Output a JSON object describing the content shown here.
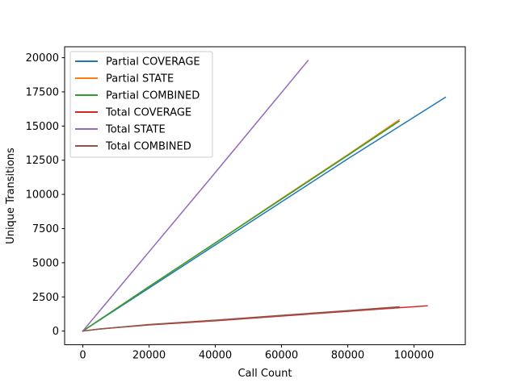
{
  "chart_data": {
    "type": "line",
    "title": "",
    "xlabel": "Call Count",
    "ylabel": "Unique Transitions",
    "xlim": [
      -5500,
      115500
    ],
    "ylim": [
      -1000,
      20800
    ],
    "xticks": [
      0,
      20000,
      40000,
      60000,
      80000,
      100000
    ],
    "xtick_labels": [
      "0",
      "20000",
      "40000",
      "60000",
      "80000",
      "100000"
    ],
    "yticks": [
      0,
      2500,
      5000,
      7500,
      10000,
      12500,
      15000,
      17500,
      20000
    ],
    "ytick_labels": [
      "0",
      "2500",
      "5000",
      "7500",
      "10000",
      "12500",
      "15000",
      "17500",
      "20000"
    ],
    "grid": false,
    "legend_position": "top-left",
    "series": [
      {
        "name": "Partial COVERAGE",
        "color": "#1f77b4",
        "x": [
          0,
          20000,
          40000,
          60000,
          80000,
          109500
        ],
        "y": [
          0,
          3150,
          6300,
          9450,
          12600,
          17100
        ]
      },
      {
        "name": "Partial STATE",
        "color": "#ff7f0e",
        "x": [
          0,
          20000,
          40000,
          60000,
          80000,
          95500
        ],
        "y": [
          0,
          3250,
          6450,
          9700,
          12900,
          15450
        ]
      },
      {
        "name": "Partial COMBINED",
        "color": "#2ca02c",
        "x": [
          0,
          20000,
          40000,
          60000,
          80000,
          95500
        ],
        "y": [
          0,
          3250,
          6450,
          9650,
          12850,
          15350
        ]
      },
      {
        "name": "Total COVERAGE",
        "color": "#d62728",
        "x": [
          0,
          5000,
          20000,
          40000,
          60000,
          80000,
          104000
        ],
        "y": [
          0,
          150,
          450,
          750,
          1100,
          1450,
          1850
        ]
      },
      {
        "name": "Total STATE",
        "color": "#9467bd",
        "x": [
          0,
          20000,
          40000,
          60000,
          68000
        ],
        "y": [
          0,
          5800,
          11600,
          17450,
          19800
        ]
      },
      {
        "name": "Total COMBINED",
        "color": "#8c564b",
        "x": [
          0,
          5000,
          20000,
          40000,
          60000,
          80000,
          95500
        ],
        "y": [
          0,
          150,
          480,
          800,
          1150,
          1500,
          1780
        ]
      }
    ]
  }
}
